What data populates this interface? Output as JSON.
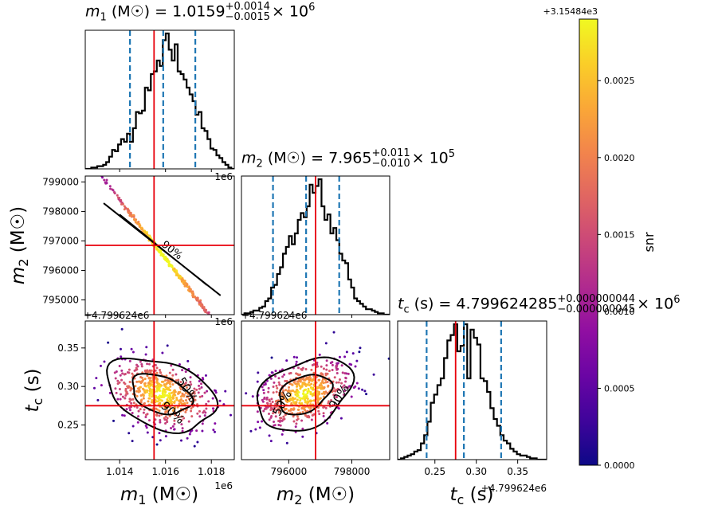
{
  "chart_data": {
    "type": "corner",
    "parameters": [
      {
        "key": "m1",
        "axis_label": "m₁ (M☉)",
        "offset": "1e6",
        "ticks": [
          1.014,
          1.016,
          1.018
        ],
        "tick_labels": [
          "1.014",
          "1.016",
          "1.018"
        ],
        "range": [
          1.0125,
          1.019
        ],
        "title_prefix": "m",
        "title_sub": "1",
        "title_unit": "(M☉) = 1.0159",
        "title_plus": "+0.0014",
        "title_minus": "−0.0015",
        "title_exp": "× 10",
        "title_exp_pow": "6"
      },
      {
        "key": "m2",
        "axis_label": "m₂ (M☉)",
        "offset": "",
        "ticks": [
          796000,
          798000
        ],
        "tick_labels": [
          "796000",
          "798000"
        ],
        "range": [
          794500,
          799200
        ],
        "title_prefix": "m",
        "title_sub": "2",
        "title_unit": "(M☉) = 7.965",
        "title_plus": "+0.011",
        "title_minus": "−0.010",
        "title_exp": "× 10",
        "title_exp_pow": "5"
      },
      {
        "key": "tc",
        "axis_label": "t_c (s)",
        "offset": "+4.799624e6",
        "ticks": [
          0.25,
          0.3,
          0.35
        ],
        "tick_labels": [
          "0.25",
          "0.30",
          "0.35"
        ],
        "range": [
          0.205,
          0.385
        ],
        "title_prefix": "t",
        "title_sub": "c",
        "title_unit": "(s) = 4.799624285",
        "title_plus": "+0.000000044",
        "title_minus": "−0.000000045",
        "title_exp": "× 10",
        "title_exp_pow": "6"
      }
    ],
    "row_labels": {
      "m2": {
        "ticks": [
          795000,
          796000,
          797000,
          798000,
          799000
        ],
        "tick_labels": [
          "795000",
          "796000",
          "797000",
          "798000",
          "799000"
        ],
        "axis_label": "m₂ (M☉)"
      },
      "tc": {
        "ticks": [
          0.25,
          0.3,
          0.35
        ],
        "tick_labels": [
          "0.25",
          "0.30",
          "0.35"
        ],
        "axis_label": "t_c (s)",
        "offset": "+4.799624e6"
      }
    },
    "axis_labels": {
      "m1": "m",
      "m1_sub": "1",
      "m2": "m",
      "m2_sub": "2",
      "tc": "t",
      "tc_sub": "c",
      "mass_unit": "(M☉)",
      "time_unit": "(s)"
    },
    "offset_labels": {
      "m1": "1e6",
      "tc_x": "+4.799624e6",
      "tc_y": "+4.799624e6"
    },
    "truths": {
      "m1": 1.0155,
      "m2": 796850,
      "tc": 0.275
    },
    "quantiles": {
      "m1": [
        1.01445,
        1.0159,
        1.0173
      ],
      "m2": [
        795500,
        796550,
        797600
      ],
      "tc": [
        0.24,
        0.285,
        0.33
      ]
    },
    "histograms": {
      "m1": {
        "edges": [
          1.0125,
          1.019
        ],
        "counts": [
          0,
          0,
          1,
          1,
          2,
          2,
          3,
          5,
          9,
          14,
          13,
          18,
          22,
          20,
          26,
          20,
          30,
          42,
          41,
          43,
          60,
          58,
          70,
          72,
          80,
          76,
          95,
          100,
          88,
          80,
          92,
          72,
          70,
          66,
          60,
          55,
          50,
          40,
          42,
          30,
          28,
          22,
          15,
          14,
          10,
          8,
          5,
          3,
          1,
          0
        ]
      },
      "m2": {
        "edges": [
          794500,
          799200
        ],
        "counts": [
          0,
          1,
          1,
          2,
          3,
          3,
          5,
          6,
          10,
          12,
          20,
          22,
          30,
          35,
          45,
          50,
          58,
          52,
          60,
          70,
          75,
          72,
          80,
          96,
          90,
          95,
          100,
          80,
          70,
          74,
          60,
          64,
          55,
          45,
          40,
          38,
          26,
          20,
          12,
          10,
          8,
          6,
          4,
          4,
          3,
          2,
          1,
          1,
          0,
          0
        ]
      },
      "tc": {
        "edges": [
          0.205,
          0.385
        ],
        "counts": [
          0,
          1,
          2,
          3,
          4,
          6,
          7,
          12,
          18,
          28,
          42,
          48,
          55,
          60,
          75,
          88,
          92,
          100,
          80,
          84,
          100,
          60,
          96,
          90,
          85,
          60,
          58,
          50,
          38,
          30,
          25,
          18,
          14,
          12,
          8,
          6,
          4,
          3,
          3,
          2,
          1,
          1,
          0,
          0,
          0
        ]
      }
    },
    "contour_levels": [
      "50%",
      "90%"
    ],
    "scatter_2d": {
      "m1_m2": {
        "slope": -1.0,
        "center": [
          1.0159,
          796500
        ],
        "spread": 0.0016
      },
      "m1_tc": {
        "center": [
          1.0158,
          0.29
        ],
        "sd": [
          0.0011,
          0.022
        ],
        "corr": -0.35
      },
      "m2_tc": {
        "center": [
          796500,
          0.29
        ],
        "sd": [
          700,
          0.022
        ],
        "corr": 0.35
      }
    },
    "colorbar": {
      "label": "snr",
      "offset": "+3.15484e3",
      "range": [
        0.0,
        0.0029
      ],
      "ticks": [
        0.0,
        0.0005,
        0.001,
        0.0015,
        0.002,
        0.0025
      ],
      "tick_labels": [
        "0.0000",
        "0.0005",
        "0.0010",
        "0.0015",
        "0.0020",
        "0.0025"
      ],
      "colormap": "plasma"
    },
    "colors": {
      "truth": "#e8000b",
      "quantile": "#1f77b4",
      "hist": "#000000",
      "contour": "#000000"
    }
  }
}
